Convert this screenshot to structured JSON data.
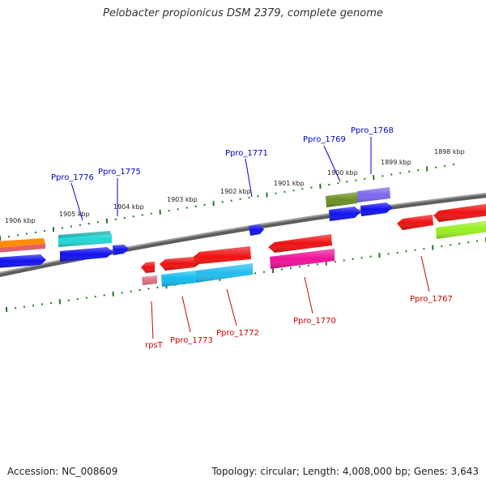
{
  "title": "Pelobacter propionicus DSM 2379, complete genome",
  "accession_text": "Accession: NC_008609",
  "summary_text": "Topology: circular; Length: 4,008,000 bp; Genes: 3,643",
  "colors": {
    "backbone": "#7a7a7a",
    "tick": "#1f7a1f",
    "forward_label": "#0000cc",
    "reverse_label": "#cc0000",
    "red": "#ee1111",
    "blue": "#1111ee",
    "cyan": "#22ccdd",
    "teal": "#22c8c8",
    "olive": "#6b8e23",
    "slate": "#7b68ee",
    "magenta": "#ee1199",
    "lime": "#99ee22",
    "orange": "#ff8c00",
    "pink": "#e06070"
  },
  "scale_labels": [
    "1906 kbp",
    "1905 kbp",
    "1904 kbp",
    "1903 kbp",
    "1902 kbp",
    "1901 kbp",
    "1900 kbp",
    "1899 kbp",
    "1898 kbp"
  ],
  "forward_labels": [
    "Ppro_1776",
    "Ppro_1775",
    "Ppro_1771",
    "Ppro_1769",
    "Ppro_1768"
  ],
  "reverse_labels": [
    "rpsT",
    "Ppro_1773",
    "Ppro_1772",
    "Ppro_1770",
    "Ppro_1767"
  ]
}
